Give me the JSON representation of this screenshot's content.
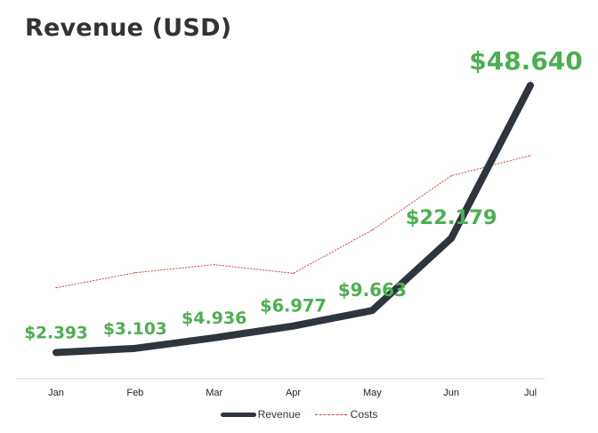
{
  "chart_data": {
    "type": "line",
    "title": "Revenue (USD)",
    "categories": [
      "Jan",
      "Feb",
      "Mar",
      "Apr",
      "May",
      "Jun",
      "Jul"
    ],
    "series": [
      {
        "name": "Revenue",
        "values": [
          2393,
          3103,
          4936,
          6977,
          9663,
          22179,
          48640
        ],
        "labels": [
          "$2.393",
          "$3.103",
          "$4.936",
          "$6.977",
          "$9.663",
          "$22.179",
          "$48.640"
        ],
        "color": "#2e353c",
        "style": "solid-thick"
      },
      {
        "name": "Costs",
        "values": [
          13600,
          16200,
          17600,
          16100,
          23600,
          33000,
          36500
        ],
        "color": "#e53935",
        "style": "dashed-thin"
      }
    ],
    "ylim": [
      0,
      52000
    ],
    "grid": false,
    "legend": "bottom",
    "label_color": "#4caf50"
  }
}
